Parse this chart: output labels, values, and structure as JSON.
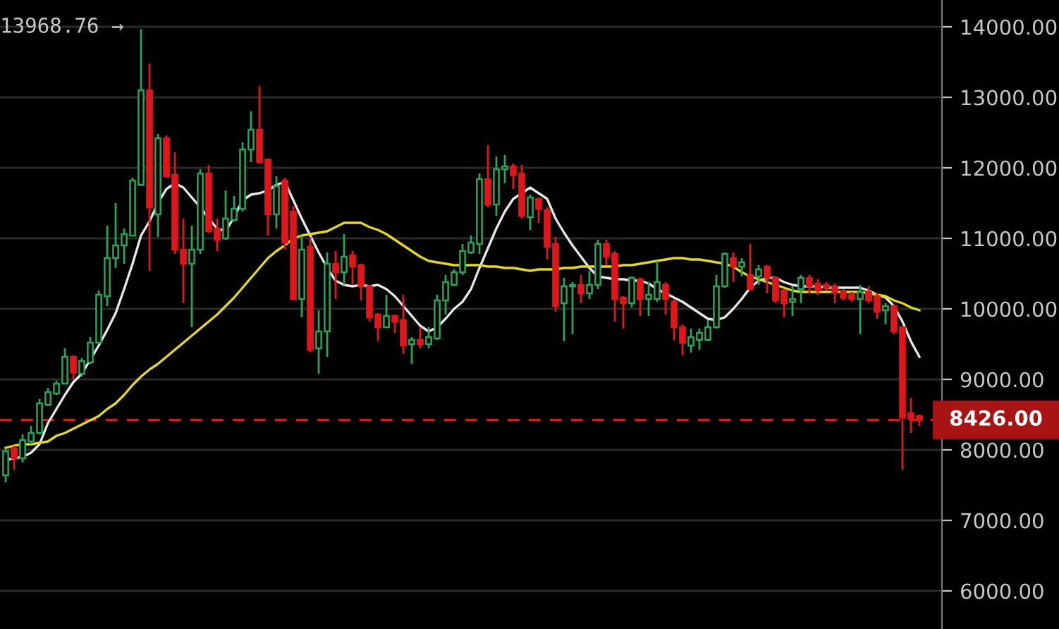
{
  "chart_data": {
    "type": "candlestick",
    "categories": [
      null,
      null,
      null,
      null,
      null,
      null,
      null,
      null,
      null,
      null,
      null,
      null,
      null,
      null,
      null,
      null,
      null,
      null,
      null,
      null,
      null,
      null,
      null,
      null,
      null,
      null,
      null,
      null,
      null,
      null,
      null,
      null,
      null,
      null,
      null,
      null,
      null,
      null,
      null,
      null,
      null,
      null,
      null,
      null,
      null,
      null,
      null,
      null,
      null,
      null,
      null,
      null,
      null,
      null,
      null,
      null,
      null,
      null,
      null,
      null,
      null,
      null,
      null,
      null,
      null,
      null,
      null,
      null,
      null,
      null,
      null,
      null,
      null,
      null,
      null,
      null,
      null,
      null,
      null,
      null,
      null,
      null,
      null,
      null,
      null,
      null,
      null,
      null,
      null,
      null,
      null,
      null,
      null,
      null,
      null,
      null,
      null,
      null,
      null,
      null,
      null,
      null,
      null,
      null,
      null,
      null,
      null,
      null,
      null
    ],
    "ohlc": [
      [
        7640,
        8020,
        7540,
        7980
      ],
      [
        8020,
        8060,
        7720,
        7880
      ],
      [
        7880,
        8220,
        7820,
        8140
      ],
      [
        8120,
        8340,
        8080,
        8240
      ],
      [
        8240,
        8720,
        8220,
        8660
      ],
      [
        8640,
        8880,
        8620,
        8820
      ],
      [
        8800,
        8980,
        8780,
        8940
      ],
      [
        8940,
        9440,
        8940,
        9320
      ],
      [
        9320,
        9340,
        9000,
        9100
      ],
      [
        9080,
        9300,
        9040,
        9260
      ],
      [
        9240,
        9600,
        9220,
        9520
      ],
      [
        9520,
        10260,
        9500,
        10200
      ],
      [
        10180,
        11180,
        10040,
        10720
      ],
      [
        10720,
        11500,
        10580,
        10900
      ],
      [
        10900,
        11140,
        10640,
        11060
      ],
      [
        11040,
        11860,
        11040,
        11820
      ],
      [
        11760,
        13968.76,
        11740,
        13100
      ],
      [
        13100,
        13480,
        10540,
        11440
      ],
      [
        11340,
        12480,
        11020,
        12420
      ],
      [
        12420,
        12460,
        11860,
        11880
      ],
      [
        11900,
        12220,
        10780,
        10840
      ],
      [
        10840,
        11280,
        10080,
        10640
      ],
      [
        10640,
        11180,
        9740,
        10840
      ],
      [
        10840,
        11980,
        10780,
        11920
      ],
      [
        11920,
        12040,
        11080,
        11100
      ],
      [
        11140,
        11280,
        10820,
        10980
      ],
      [
        11000,
        11680,
        10980,
        11280
      ],
      [
        11260,
        11600,
        11240,
        11420
      ],
      [
        11420,
        12360,
        11380,
        12260
      ],
      [
        12260,
        12800,
        12080,
        12540
      ],
      [
        12540,
        13160,
        12060,
        12080
      ],
      [
        12120,
        12120,
        11040,
        11340
      ],
      [
        11340,
        11880,
        11140,
        11740
      ],
      [
        11820,
        11860,
        10840,
        10940
      ],
      [
        11380,
        11460,
        10120,
        10140
      ],
      [
        10140,
        11040,
        9880,
        10840
      ],
      [
        10880,
        11020,
        9380,
        9420
      ],
      [
        9440,
        9980,
        9080,
        9680
      ],
      [
        9680,
        10800,
        9320,
        10640
      ],
      [
        10640,
        10820,
        10140,
        10520
      ],
      [
        10520,
        11060,
        10340,
        10740
      ],
      [
        10760,
        10820,
        10340,
        10600
      ],
      [
        10620,
        10640,
        10120,
        10320
      ],
      [
        10320,
        10340,
        9820,
        9880
      ],
      [
        9920,
        9940,
        9540,
        9740
      ],
      [
        9740,
        10200,
        9740,
        9900
      ],
      [
        9900,
        9920,
        9660,
        9820
      ],
      [
        9840,
        10200,
        9360,
        9480
      ],
      [
        9500,
        9600,
        9220,
        9560
      ],
      [
        9560,
        9740,
        9440,
        9500
      ],
      [
        9500,
        9740,
        9440,
        9600
      ],
      [
        9580,
        10200,
        9560,
        10120
      ],
      [
        10120,
        10480,
        9920,
        10380
      ],
      [
        10340,
        10560,
        10320,
        10520
      ],
      [
        10520,
        10920,
        10480,
        10820
      ],
      [
        10800,
        11040,
        10780,
        10940
      ],
      [
        10920,
        11920,
        10780,
        11840
      ],
      [
        11840,
        12320,
        11440,
        11480
      ],
      [
        11480,
        12160,
        11320,
        11980
      ],
      [
        11980,
        12180,
        11780,
        12020
      ],
      [
        12020,
        12060,
        11700,
        11900
      ],
      [
        11920,
        12040,
        11280,
        11320
      ],
      [
        11300,
        11620,
        11120,
        11580
      ],
      [
        11560,
        11580,
        11220,
        11420
      ],
      [
        11400,
        11440,
        10700,
        10880
      ],
      [
        10920,
        11020,
        9960,
        10040
      ],
      [
        10080,
        10440,
        9540,
        10320
      ],
      [
        10320,
        10380,
        9640,
        10340
      ],
      [
        10340,
        10480,
        10080,
        10220
      ],
      [
        10220,
        10540,
        10140,
        10340
      ],
      [
        10340,
        10980,
        10280,
        10920
      ],
      [
        10920,
        10980,
        10620,
        10740
      ],
      [
        10780,
        10820,
        9820,
        10140
      ],
      [
        10160,
        10180,
        9720,
        10080
      ],
      [
        10080,
        10460,
        10020,
        10440
      ],
      [
        10420,
        10440,
        9900,
        10140
      ],
      [
        10140,
        10380,
        9900,
        10200
      ],
      [
        10140,
        10680,
        10100,
        10380
      ],
      [
        10340,
        10380,
        9920,
        10140
      ],
      [
        10100,
        10140,
        9560,
        9740
      ],
      [
        9740,
        9780,
        9340,
        9520
      ],
      [
        9480,
        9720,
        9380,
        9600
      ],
      [
        9560,
        9720,
        9420,
        9660
      ],
      [
        9560,
        9840,
        9540,
        9740
      ],
      [
        9740,
        10480,
        9720,
        10320
      ],
      [
        10320,
        10800,
        10300,
        10780
      ],
      [
        10720,
        10800,
        10380,
        10600
      ],
      [
        10600,
        10720,
        10460,
        10660
      ],
      [
        10480,
        10920,
        10260,
        10280
      ],
      [
        10460,
        10620,
        10340,
        10560
      ],
      [
        10600,
        10620,
        10220,
        10440
      ],
      [
        10440,
        10460,
        10080,
        10120
      ],
      [
        10260,
        10280,
        9880,
        10080
      ],
      [
        10100,
        10320,
        9900,
        10140
      ],
      [
        10280,
        10480,
        10080,
        10440
      ],
      [
        10440,
        10480,
        10220,
        10320
      ],
      [
        10360,
        10420,
        10200,
        10260
      ],
      [
        10340,
        10380,
        10260,
        10300
      ],
      [
        10320,
        10360,
        10080,
        10240
      ],
      [
        10240,
        10280,
        10120,
        10160
      ],
      [
        10200,
        10240,
        10100,
        10140
      ],
      [
        10140,
        10340,
        9640,
        10240
      ],
      [
        10240,
        10320,
        10080,
        10120
      ],
      [
        10180,
        10220,
        9860,
        9960
      ],
      [
        9980,
        10080,
        9780,
        10040
      ],
      [
        10040,
        10060,
        9640,
        9680
      ],
      [
        9740,
        9740,
        7720,
        8460
      ],
      [
        8520,
        8740,
        8240,
        8440
      ],
      [
        8480,
        8500,
        8340,
        8426
      ]
    ],
    "colors": [
      "#26a65b",
      "#e0161b",
      "#26a65b",
      "#26a65b",
      "#26a65b",
      "#26a65b",
      "#26a65b",
      "#26a65b",
      "#e0161b",
      "#26a65b",
      "#26a65b",
      "#26a65b",
      "#26a65b",
      "#26a65b",
      "#26a65b",
      "#26a65b",
      "#26a65b",
      "#e0161b",
      "#26a65b",
      "#e0161b",
      "#e0161b",
      "#e0161b",
      "#26a65b",
      "#26a65b",
      "#e0161b",
      "#e0161b",
      "#26a65b",
      "#26a65b",
      "#26a65b",
      "#26a65b",
      "#e0161b",
      "#e0161b",
      "#26a65b",
      "#e0161b",
      "#e0161b",
      "#26a65b",
      "#e0161b",
      "#26a65b",
      "#26a65b",
      "#e0161b",
      "#26a65b",
      "#e0161b",
      "#e0161b",
      "#e0161b",
      "#e0161b",
      "#26a65b",
      "#e0161b",
      "#e0161b",
      "#26a65b",
      "#e0161b",
      "#26a65b",
      "#26a65b",
      "#26a65b",
      "#26a65b",
      "#26a65b",
      "#26a65b",
      "#26a65b",
      "#e0161b",
      "#26a65b",
      "#26a65b",
      "#e0161b",
      "#e0161b",
      "#26a65b",
      "#e0161b",
      "#e0161b",
      "#e0161b",
      "#26a65b",
      "#26a65b",
      "#e0161b",
      "#26a65b",
      "#26a65b",
      "#e0161b",
      "#e0161b",
      "#e0161b",
      "#26a65b",
      "#e0161b",
      "#26a65b",
      "#26a65b",
      "#e0161b",
      "#e0161b",
      "#e0161b",
      "#26a65b",
      "#26a65b",
      "#26a65b",
      "#26a65b",
      "#26a65b",
      "#e0161b",
      "#26a65b",
      "#e0161b",
      "#26a65b",
      "#e0161b",
      "#e0161b",
      "#e0161b",
      "#26a65b",
      "#26a65b",
      "#e0161b",
      "#e0161b",
      "#e0161b",
      "#e0161b",
      "#e0161b",
      "#e0161b",
      "#26a65b",
      "#e0161b",
      "#e0161b",
      "#26a65b",
      "#e0161b",
      "#e0161b",
      "#e0161b",
      "#e0161b"
    ],
    "series": [
      {
        "type": "line",
        "color": "#e8e8e8",
        "values": [
          7860,
          7880,
          7900,
          7960,
          8080,
          8380,
          8580,
          8780,
          8960,
          9080,
          9280,
          9480,
          9700,
          9940,
          10280,
          10640,
          11040,
          11240,
          11500,
          11700,
          11780,
          11720,
          11580,
          11440,
          11280,
          11140,
          11100,
          11300,
          11540,
          11620,
          11640,
          11680,
          11760,
          11800,
          11540,
          11280,
          11040,
          10800,
          10580,
          10400,
          10340,
          10320,
          10340,
          10320,
          10340,
          10280,
          10180,
          10040,
          9900,
          9760,
          9680,
          9740,
          9860,
          10000,
          10100,
          10280,
          10580,
          10860,
          11140,
          11380,
          11560,
          11640,
          11720,
          11640,
          11560,
          11280,
          11080,
          10900,
          10740,
          10580,
          10460,
          10440,
          10420,
          10420,
          10400,
          10400,
          10360,
          10280,
          10220,
          10160,
          10100,
          10020,
          9940,
          9860,
          9840,
          9880,
          10000,
          10140,
          10300,
          10400,
          10440,
          10440,
          10380,
          10340,
          10320,
          10320,
          10320,
          10300,
          10300,
          10300,
          10300,
          10300,
          10260,
          10200,
          10160,
          10040,
          9820,
          9540,
          9320
        ]
      },
      {
        "type": "line",
        "color": "#e6d81e",
        "values": [
          8030,
          8060,
          8080,
          8080,
          8100,
          8120,
          8200,
          8240,
          8300,
          8360,
          8420,
          8480,
          8580,
          8660,
          8780,
          8920,
          9040,
          9140,
          9220,
          9320,
          9420,
          9520,
          9620,
          9720,
          9820,
          9920,
          10040,
          10160,
          10300,
          10440,
          10580,
          10720,
          10820,
          10900,
          11000,
          11040,
          11060,
          11080,
          11100,
          11160,
          11220,
          11220,
          11220,
          11160,
          11120,
          11060,
          10980,
          10900,
          10820,
          10740,
          10680,
          10660,
          10640,
          10620,
          10620,
          10620,
          10620,
          10600,
          10600,
          10580,
          10580,
          10560,
          10540,
          10560,
          10560,
          10560,
          10580,
          10580,
          10600,
          10600,
          10600,
          10600,
          10600,
          10620,
          10620,
          10640,
          10660,
          10680,
          10700,
          10720,
          10720,
          10700,
          10700,
          10680,
          10660,
          10640,
          10600,
          10520,
          10460,
          10420,
          10380,
          10340,
          10300,
          10260,
          10240,
          10240,
          10240,
          10240,
          10240,
          10240,
          10240,
          10240,
          10220,
          10200,
          10180,
          10120,
          10080,
          10020,
          9980
        ]
      }
    ],
    "ylim": [
      5460,
      14380
    ],
    "yticks": [
      {
        "value": 6000,
        "label": "6000.00"
      },
      {
        "value": 7000,
        "label": "7000.00"
      },
      {
        "value": 8000,
        "label": "8000.00"
      },
      {
        "value": 9000,
        "label": "9000.00"
      },
      {
        "value": 10000,
        "label": "10000.00"
      },
      {
        "value": 11000,
        "label": "11000.00"
      },
      {
        "value": 12000,
        "label": "12000.00"
      },
      {
        "value": 13000,
        "label": "13000.00"
      },
      {
        "value": 14000,
        "label": "14000.00"
      }
    ],
    "grid": "y",
    "ref_lines": [
      {
        "axis": "y",
        "value": 8426,
        "label": "8426.00",
        "color": "#cc1f1f",
        "line_style": "dashed"
      }
    ],
    "annotations": [
      "13968.76 →"
    ]
  }
}
